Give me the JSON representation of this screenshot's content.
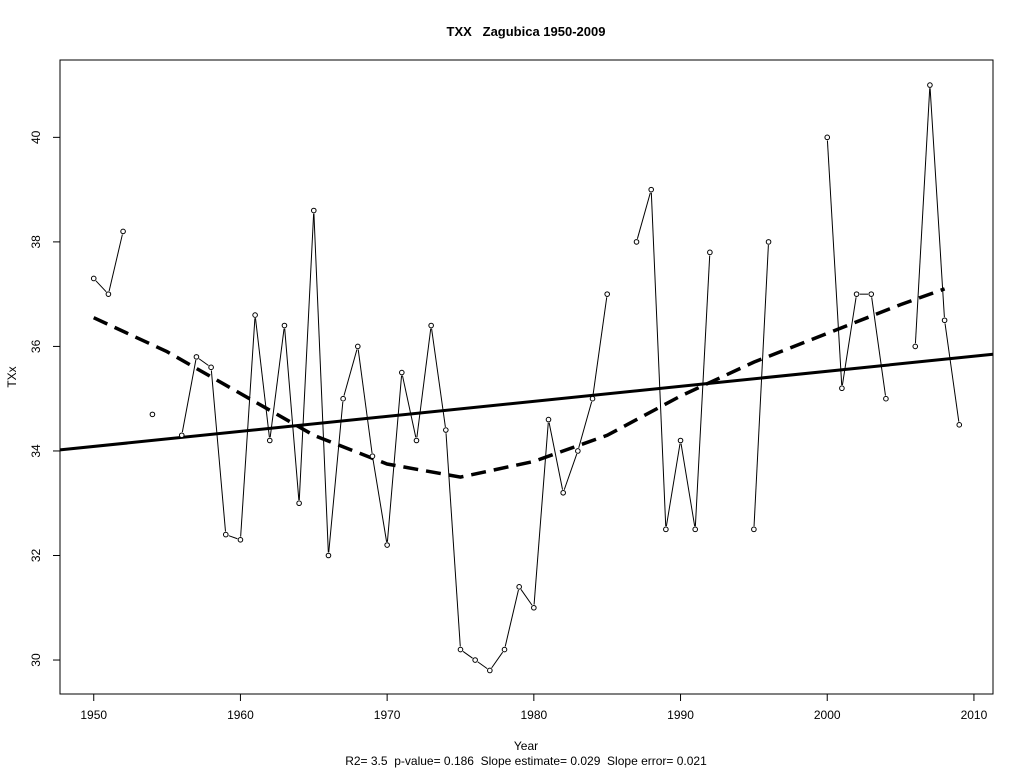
{
  "chart_data": {
    "type": "line",
    "title": "TXX   Zagubica 1950-2009",
    "xlabel": "Year",
    "ylabel": "TXx",
    "subtitle": "R2= 3.5  p-value= 0.186  Slope estimate= 0.029  Slope error= 0.021",
    "xlim": [
      1947.7,
      2011.3
    ],
    "ylim": [
      29.35,
      41.48
    ],
    "x_ticks": [
      1950,
      1960,
      1970,
      1980,
      1990,
      2000,
      2010
    ],
    "y_ticks": [
      30,
      32,
      34,
      36,
      38,
      40
    ],
    "grid": false,
    "series": [
      {
        "style": "points-connected",
        "x": [
          1950,
          1951,
          1952,
          1953,
          1954,
          1955,
          1956,
          1957,
          1958,
          1959,
          1960,
          1961,
          1962,
          1963,
          1964,
          1965,
          1966,
          1967,
          1968,
          1969,
          1970,
          1971,
          1972,
          1973,
          1974,
          1975,
          1976,
          1977,
          1978,
          1979,
          1980,
          1981,
          1982,
          1983,
          1984,
          1985,
          1986,
          1987,
          1988,
          1989,
          1990,
          1991,
          1992,
          1993,
          1994,
          1995,
          1996,
          1997,
          1998,
          1999,
          2000,
          2001,
          2002,
          2003,
          2004,
          2005,
          2006,
          2007,
          2008,
          2009
        ],
        "y": [
          37.3,
          37.0,
          38.2,
          null,
          34.7,
          null,
          34.3,
          35.8,
          35.6,
          32.4,
          32.3,
          36.6,
          34.2,
          36.4,
          33.0,
          38.6,
          32.0,
          35.0,
          36.0,
          33.9,
          32.2,
          35.5,
          34.2,
          36.4,
          34.4,
          30.2,
          30.0,
          29.8,
          30.2,
          31.4,
          31.0,
          34.6,
          33.2,
          34.0,
          35.0,
          37.0,
          null,
          38.0,
          39.0,
          32.5,
          34.2,
          32.5,
          37.8,
          null,
          null,
          32.5,
          38.0,
          null,
          null,
          null,
          40.0,
          35.2,
          37.0,
          37.0,
          35.0,
          null,
          36.0,
          41.0,
          36.5,
          34.5
        ]
      },
      {
        "style": "linear-trend",
        "x": [
          1947.7,
          2011.3
        ],
        "y": [
          34.02,
          35.85
        ]
      },
      {
        "style": "smoothed-dashed",
        "x": [
          1950,
          1955,
          1960,
          1965,
          1970,
          1975,
          1980,
          1985,
          1990,
          1995,
          2000,
          2005,
          2008
        ],
        "y": [
          36.55,
          35.9,
          35.1,
          34.3,
          33.75,
          33.5,
          33.8,
          34.3,
          35.05,
          35.7,
          36.25,
          36.8,
          37.1
        ]
      }
    ]
  }
}
